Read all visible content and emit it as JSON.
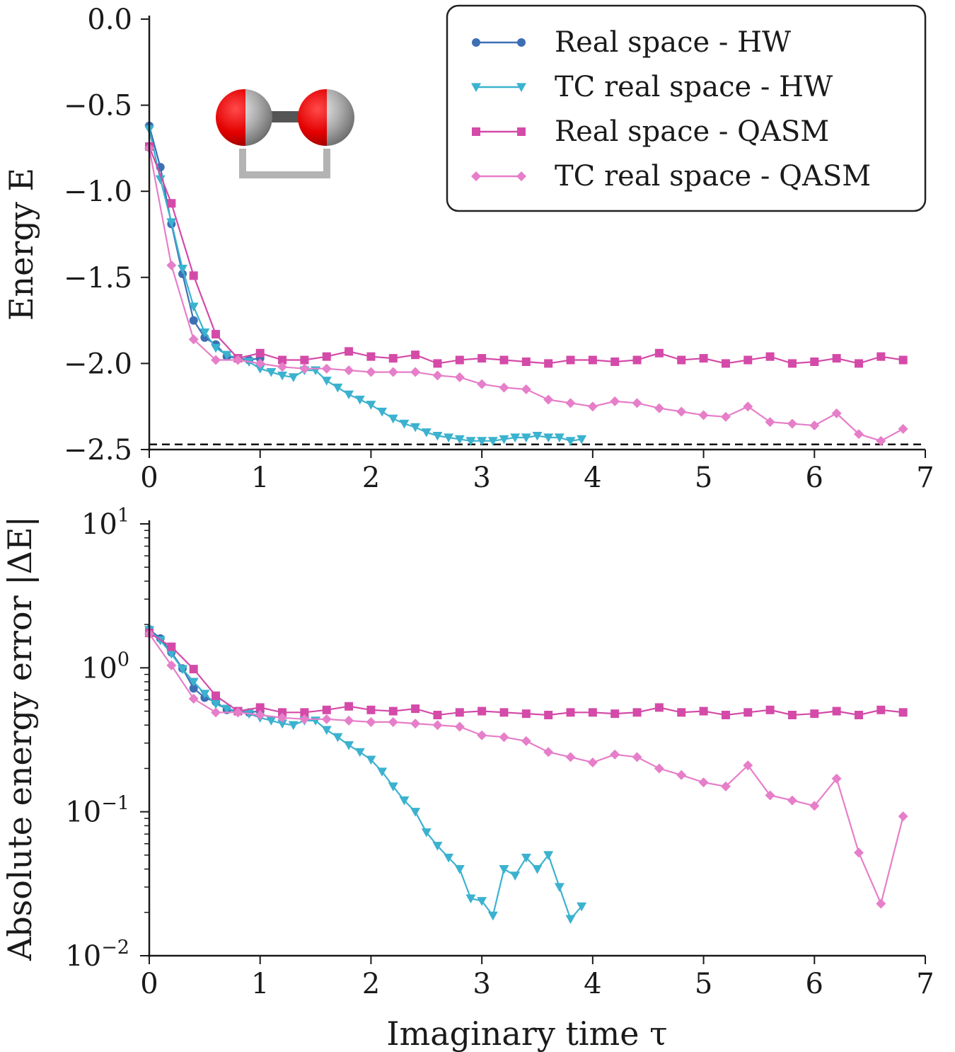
{
  "colors": {
    "rs_hw": "#3d6fb5",
    "tc_hw": "#3bb2cf",
    "rs_qasm": "#d44aa8",
    "tc_qasm": "#e67ec9",
    "reference": "#111111"
  },
  "molecule_icon": "h2-molecule-icon",
  "chart_data": [
    {
      "type": "line",
      "id": "energy",
      "xlabel": "",
      "ylabel": "Energy E",
      "xlim": [
        0,
        7
      ],
      "ylim": [
        -2.5,
        0.0
      ],
      "xticks": [
        "0",
        "1",
        "2",
        "3",
        "4",
        "5",
        "6",
        "7"
      ],
      "yticks": [
        "0.0",
        "−0.5",
        "−1.0",
        "−1.5",
        "−2.0",
        "−2.5"
      ],
      "ytick_values": [
        0.0,
        -0.5,
        -1.0,
        -1.5,
        -2.0,
        -2.5
      ],
      "reference_energy": -2.47,
      "legend_position": "top-right",
      "series": [
        {
          "name": "Real space - HW",
          "marker": "circle",
          "color": "#3d6fb5",
          "x": [
            0,
            0.1,
            0.2,
            0.3,
            0.4,
            0.5,
            0.6,
            0.7,
            0.8,
            0.9,
            1.0
          ],
          "y": [
            -0.62,
            -0.86,
            -1.19,
            -1.48,
            -1.75,
            -1.85,
            -1.89,
            -1.96,
            -1.97,
            -1.98,
            -1.97
          ]
        },
        {
          "name": "TC real space - HW",
          "marker": "triangle",
          "color": "#3bb2cf",
          "x": [
            0,
            0.1,
            0.2,
            0.3,
            0.4,
            0.5,
            0.6,
            0.7,
            0.8,
            0.9,
            1.0,
            1.1,
            1.2,
            1.3,
            1.4,
            1.5,
            1.6,
            1.7,
            1.8,
            1.9,
            2.0,
            2.1,
            2.2,
            2.3,
            2.4,
            2.5,
            2.6,
            2.7,
            2.8,
            2.9,
            3.0,
            3.1,
            3.2,
            3.3,
            3.4,
            3.5,
            3.6,
            3.7,
            3.8,
            3.9
          ],
          "y": [
            -0.64,
            -0.93,
            -1.18,
            -1.45,
            -1.67,
            -1.82,
            -1.91,
            -1.95,
            -1.97,
            -1.99,
            -2.03,
            -2.05,
            -2.07,
            -2.08,
            -2.04,
            -2.04,
            -2.1,
            -2.14,
            -2.18,
            -2.21,
            -2.24,
            -2.28,
            -2.32,
            -2.35,
            -2.37,
            -2.4,
            -2.42,
            -2.43,
            -2.44,
            -2.45,
            -2.45,
            -2.45,
            -2.44,
            -2.43,
            -2.43,
            -2.42,
            -2.43,
            -2.43,
            -2.45,
            -2.44
          ]
        },
        {
          "name": "Real space - QASM",
          "marker": "square",
          "color": "#d44aa8",
          "x": [
            0,
            0.2,
            0.4,
            0.6,
            0.8,
            1.0,
            1.2,
            1.4,
            1.6,
            1.8,
            2.0,
            2.2,
            2.4,
            2.6,
            2.8,
            3.0,
            3.2,
            3.4,
            3.6,
            3.8,
            4.0,
            4.2,
            4.4,
            4.6,
            4.8,
            5.0,
            5.2,
            5.4,
            5.6,
            5.8,
            6.0,
            6.2,
            6.4,
            6.6,
            6.8
          ],
          "y": [
            -0.74,
            -1.07,
            -1.49,
            -1.83,
            -1.97,
            -1.94,
            -1.98,
            -1.98,
            -1.96,
            -1.93,
            -1.96,
            -1.97,
            -1.95,
            -2.0,
            -1.98,
            -1.97,
            -1.98,
            -1.99,
            -2.0,
            -1.98,
            -1.98,
            -1.99,
            -1.98,
            -1.94,
            -1.98,
            -1.97,
            -2.0,
            -1.98,
            -1.96,
            -2.0,
            -1.99,
            -1.97,
            -2.0,
            -1.96,
            -1.98
          ]
        },
        {
          "name": "TC real space - QASM",
          "marker": "diamond",
          "color": "#e67ec9",
          "x": [
            0,
            0.2,
            0.4,
            0.6,
            0.8,
            1.0,
            1.2,
            1.4,
            1.6,
            1.8,
            2.0,
            2.2,
            2.4,
            2.6,
            2.8,
            3.0,
            3.2,
            3.4,
            3.6,
            3.8,
            4.0,
            4.2,
            4.4,
            4.6,
            4.8,
            5.0,
            5.2,
            5.4,
            5.6,
            5.8,
            6.0,
            6.2,
            6.4,
            6.6,
            6.8
          ],
          "y": [
            -0.75,
            -1.43,
            -1.86,
            -1.98,
            -1.98,
            -2.0,
            -2.02,
            -2.03,
            -2.03,
            -2.04,
            -2.05,
            -2.05,
            -2.05,
            -2.07,
            -2.08,
            -2.12,
            -2.14,
            -2.15,
            -2.21,
            -2.23,
            -2.25,
            -2.22,
            -2.23,
            -2.26,
            -2.28,
            -2.3,
            -2.31,
            -2.25,
            -2.34,
            -2.35,
            -2.36,
            -2.29,
            -2.41,
            -2.45,
            -2.38
          ]
        }
      ]
    },
    {
      "type": "line",
      "id": "error",
      "xlabel": "Imaginary time τ",
      "ylabel": "Absolute energy error |ΔE|",
      "yscale": "log",
      "xlim": [
        0,
        7
      ],
      "ylim": [
        0.01,
        10
      ],
      "xticks": [
        "0",
        "1",
        "2",
        "3",
        "4",
        "5",
        "6",
        "7"
      ],
      "yticks": [
        {
          "base": "10",
          "exp": "1"
        },
        {
          "base": "10",
          "exp": "0"
        },
        {
          "base": "10",
          "exp": "−1"
        },
        {
          "base": "10",
          "exp": "−2"
        }
      ],
      "ytick_values": [
        10,
        1,
        0.1,
        0.01
      ],
      "series": [
        {
          "name": "Real space - HW",
          "marker": "circle",
          "color": "#3d6fb5",
          "x": [
            0,
            0.1,
            0.2,
            0.3,
            0.4,
            0.5,
            0.6,
            0.7,
            0.8,
            0.9,
            1.0
          ],
          "y": [
            1.85,
            1.6,
            1.28,
            0.99,
            0.72,
            0.62,
            0.58,
            0.51,
            0.5,
            0.49,
            0.5
          ]
        },
        {
          "name": "TC real space - HW",
          "marker": "triangle",
          "color": "#3bb2cf",
          "x": [
            0,
            0.1,
            0.2,
            0.3,
            0.4,
            0.5,
            0.6,
            0.7,
            0.8,
            0.9,
            1.0,
            1.1,
            1.2,
            1.3,
            1.4,
            1.5,
            1.6,
            1.7,
            1.8,
            1.9,
            2.0,
            2.1,
            2.2,
            2.3,
            2.4,
            2.5,
            2.6,
            2.7,
            2.8,
            2.9,
            3.0,
            3.1,
            3.2,
            3.3,
            3.4,
            3.5,
            3.6,
            3.7,
            3.8,
            3.9
          ],
          "y": [
            1.83,
            1.55,
            1.25,
            0.98,
            0.8,
            0.66,
            0.56,
            0.52,
            0.5,
            0.48,
            0.45,
            0.43,
            0.41,
            0.4,
            0.43,
            0.43,
            0.37,
            0.33,
            0.29,
            0.26,
            0.23,
            0.19,
            0.15,
            0.12,
            0.1,
            0.072,
            0.058,
            0.048,
            0.04,
            0.025,
            0.024,
            0.019,
            0.04,
            0.036,
            0.048,
            0.04,
            0.05,
            0.03,
            0.018,
            0.022
          ]
        },
        {
          "name": "Real space - QASM",
          "marker": "square",
          "color": "#d44aa8",
          "x": [
            0,
            0.2,
            0.4,
            0.6,
            0.8,
            1.0,
            1.2,
            1.4,
            1.6,
            1.8,
            2.0,
            2.2,
            2.4,
            2.6,
            2.8,
            3.0,
            3.2,
            3.4,
            3.6,
            3.8,
            4.0,
            4.2,
            4.4,
            4.6,
            4.8,
            5.0,
            5.2,
            5.4,
            5.6,
            5.8,
            6.0,
            6.2,
            6.4,
            6.6,
            6.8
          ],
          "y": [
            1.75,
            1.4,
            0.98,
            0.64,
            0.5,
            0.53,
            0.49,
            0.49,
            0.51,
            0.54,
            0.51,
            0.5,
            0.52,
            0.47,
            0.49,
            0.5,
            0.49,
            0.48,
            0.47,
            0.49,
            0.49,
            0.48,
            0.49,
            0.53,
            0.49,
            0.5,
            0.47,
            0.49,
            0.51,
            0.47,
            0.48,
            0.5,
            0.47,
            0.51,
            0.49
          ]
        },
        {
          "name": "TC real space - QASM",
          "marker": "diamond",
          "color": "#e67ec9",
          "x": [
            0,
            0.2,
            0.4,
            0.6,
            0.8,
            1.0,
            1.2,
            1.4,
            1.6,
            1.8,
            2.0,
            2.2,
            2.4,
            2.6,
            2.8,
            3.0,
            3.2,
            3.4,
            3.6,
            3.8,
            4.0,
            4.2,
            4.4,
            4.6,
            4.8,
            5.0,
            5.2,
            5.4,
            5.6,
            5.8,
            6.0,
            6.2,
            6.4,
            6.6,
            6.8
          ],
          "y": [
            1.72,
            1.04,
            0.61,
            0.49,
            0.49,
            0.47,
            0.45,
            0.44,
            0.44,
            0.43,
            0.42,
            0.42,
            0.41,
            0.4,
            0.39,
            0.34,
            0.33,
            0.31,
            0.26,
            0.24,
            0.22,
            0.25,
            0.24,
            0.2,
            0.18,
            0.16,
            0.15,
            0.21,
            0.13,
            0.12,
            0.11,
            0.17,
            0.052,
            0.023,
            0.093
          ]
        }
      ]
    }
  ]
}
